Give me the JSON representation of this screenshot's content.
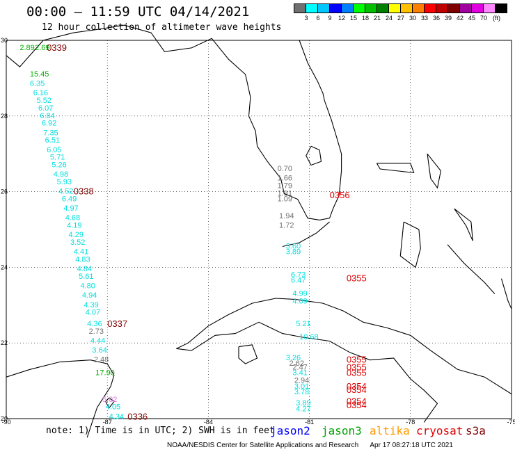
{
  "header": {
    "title": "00:00 – 11:59 UTC 04/14/2021",
    "subtitle": "12 hour collection of altimeter wave heights"
  },
  "colorbar": {
    "colors": [
      "#707070",
      "#00ffff",
      "#00c8ff",
      "#0000ff",
      "#0080ff",
      "#00ff00",
      "#00c000",
      "#008000",
      "#ffff00",
      "#ffc000",
      "#ff8000",
      "#ff0000",
      "#c00000",
      "#800000",
      "#a000a0",
      "#e000e0",
      "#ff88ff",
      "#000000"
    ],
    "labels": [
      "3",
      "6",
      "9",
      "12",
      "15",
      "18",
      "21",
      "24",
      "27",
      "30",
      "33",
      "36",
      "39",
      "42",
      "45",
      "70"
    ],
    "unit": "(ft)"
  },
  "map": {
    "lon_range": [
      -90,
      -75
    ],
    "lat_range": [
      20,
      30
    ],
    "lon_ticks": [
      "-90",
      "-87",
      "-84",
      "-81",
      "-78",
      "-75"
    ],
    "lat_ticks": [
      "30",
      "28",
      "26",
      "24",
      "22",
      "20"
    ],
    "grid": "dotted",
    "colors": {
      "cyan": "#00dede",
      "green": "#00b000",
      "gray": "#707070",
      "pink": "#e070e0",
      "red": "#dd0000",
      "darkred": "#800000"
    },
    "pass_labels": [
      {
        "text": "0339",
        "lon": -88.8,
        "lat": 29.8,
        "color": "darkred"
      },
      {
        "text": "0338",
        "lon": -88.0,
        "lat": 26.0,
        "color": "darkred"
      },
      {
        "text": "0337",
        "lon": -87.0,
        "lat": 22.5,
        "color": "darkred"
      },
      {
        "text": "0336",
        "lon": -86.4,
        "lat": 20.05,
        "color": "darkred"
      },
      {
        "text": "0356",
        "lon": -80.4,
        "lat": 25.9,
        "color": "red"
      },
      {
        "text": "0355",
        "lon": -79.9,
        "lat": 23.7,
        "color": "red"
      },
      {
        "text": "0355",
        "lon": -79.9,
        "lat": 21.55,
        "color": "red"
      },
      {
        "text": "0355",
        "lon": -79.9,
        "lat": 21.35,
        "color": "red"
      },
      {
        "text": "0355",
        "lon": -79.9,
        "lat": 21.2,
        "color": "red"
      },
      {
        "text": "0354",
        "lon": -79.9,
        "lat": 20.85,
        "color": "red"
      },
      {
        "text": "0354",
        "lon": -79.9,
        "lat": 20.75,
        "color": "red"
      },
      {
        "text": "0354",
        "lon": -79.9,
        "lat": 20.45,
        "color": "red"
      },
      {
        "text": "0354",
        "lon": -79.9,
        "lat": 20.35,
        "color": "red"
      }
    ],
    "swh_points": [
      {
        "text": "2.89",
        "lon": -89.6,
        "lat": 29.8,
        "color": "green"
      },
      {
        "text": "2.69",
        "lon": -89.15,
        "lat": 29.8,
        "color": "green"
      },
      {
        "text": "15.45",
        "lon": -89.3,
        "lat": 29.1,
        "color": "green"
      },
      {
        "text": "6.35",
        "lon": -89.3,
        "lat": 28.85,
        "color": "cyan"
      },
      {
        "text": "6.16",
        "lon": -89.2,
        "lat": 28.6,
        "color": "cyan"
      },
      {
        "text": "5.52",
        "lon": -89.1,
        "lat": 28.4,
        "color": "cyan"
      },
      {
        "text": "6.07",
        "lon": -89.05,
        "lat": 28.2,
        "color": "cyan"
      },
      {
        "text": "6.84",
        "lon": -89.0,
        "lat": 28.0,
        "color": "cyan"
      },
      {
        "text": "6.92",
        "lon": -88.95,
        "lat": 27.8,
        "color": "cyan"
      },
      {
        "text": "7.35",
        "lon": -88.9,
        "lat": 27.55,
        "color": "cyan"
      },
      {
        "text": "6.51",
        "lon": -88.85,
        "lat": 27.35,
        "color": "cyan"
      },
      {
        "text": "6.05",
        "lon": -88.8,
        "lat": 27.1,
        "color": "cyan"
      },
      {
        "text": "5.71",
        "lon": -88.7,
        "lat": 26.9,
        "color": "cyan"
      },
      {
        "text": "5.26",
        "lon": -88.65,
        "lat": 26.7,
        "color": "cyan"
      },
      {
        "text": "4.98",
        "lon": -88.6,
        "lat": 26.45,
        "color": "cyan"
      },
      {
        "text": "5.93",
        "lon": -88.5,
        "lat": 26.25,
        "color": "cyan"
      },
      {
        "text": "4.52",
        "lon": -88.45,
        "lat": 26.0,
        "color": "cyan"
      },
      {
        "text": "6.49",
        "lon": -88.35,
        "lat": 25.8,
        "color": "cyan"
      },
      {
        "text": "4.97",
        "lon": -88.3,
        "lat": 25.55,
        "color": "cyan"
      },
      {
        "text": "4.68",
        "lon": -88.25,
        "lat": 25.3,
        "color": "cyan"
      },
      {
        "text": "4.19",
        "lon": -88.2,
        "lat": 25.1,
        "color": "cyan"
      },
      {
        "text": "4.29",
        "lon": -88.15,
        "lat": 24.85,
        "color": "cyan"
      },
      {
        "text": "3.52",
        "lon": -88.1,
        "lat": 24.65,
        "color": "cyan"
      },
      {
        "text": "4.41",
        "lon": -88.0,
        "lat": 24.4,
        "color": "cyan"
      },
      {
        "text": "4.83",
        "lon": -87.95,
        "lat": 24.2,
        "color": "cyan"
      },
      {
        "text": "4.84",
        "lon": -87.9,
        "lat": 23.95,
        "color": "cyan"
      },
      {
        "text": "5.61",
        "lon": -87.85,
        "lat": 23.75,
        "color": "cyan"
      },
      {
        "text": "4.80",
        "lon": -87.8,
        "lat": 23.5,
        "color": "cyan"
      },
      {
        "text": "4.94",
        "lon": -87.75,
        "lat": 23.25,
        "color": "cyan"
      },
      {
        "text": "4.39",
        "lon": -87.7,
        "lat": 23.0,
        "color": "cyan"
      },
      {
        "text": "4.07",
        "lon": -87.65,
        "lat": 22.8,
        "color": "cyan"
      },
      {
        "text": "4.36",
        "lon": -87.6,
        "lat": 22.5,
        "color": "cyan"
      },
      {
        "text": "2.73",
        "lon": -87.55,
        "lat": 22.3,
        "color": "gray"
      },
      {
        "text": "4.44",
        "lon": -87.5,
        "lat": 22.05,
        "color": "cyan"
      },
      {
        "text": "3.64",
        "lon": -87.45,
        "lat": 21.8,
        "color": "cyan"
      },
      {
        "text": "2.48",
        "lon": -87.4,
        "lat": 21.55,
        "color": "gray"
      },
      {
        "text": "17.90",
        "lon": -87.35,
        "lat": 21.2,
        "color": "green"
      },
      {
        "text": "5.02",
        "lon": -87.15,
        "lat": 20.5,
        "color": "pink"
      },
      {
        "text": "4.05",
        "lon": -87.05,
        "lat": 20.3,
        "color": "cyan"
      },
      {
        "text": "4.34",
        "lon": -86.95,
        "lat": 20.05,
        "color": "cyan"
      },
      {
        "text": "0.70",
        "lon": -81.95,
        "lat": 26.6,
        "color": "gray"
      },
      {
        "text": "1.66",
        "lon": -81.95,
        "lat": 26.35,
        "color": "gray"
      },
      {
        "text": "1.79",
        "lon": -81.95,
        "lat": 26.15,
        "color": "gray"
      },
      {
        "text": "1.31",
        "lon": -81.95,
        "lat": 25.95,
        "color": "gray"
      },
      {
        "text": "1.09",
        "lon": -81.95,
        "lat": 25.8,
        "color": "gray"
      },
      {
        "text": "1.94",
        "lon": -81.9,
        "lat": 25.35,
        "color": "gray"
      },
      {
        "text": "1.72",
        "lon": -81.9,
        "lat": 25.1,
        "color": "gray"
      },
      {
        "text": "3.60",
        "lon": -81.7,
        "lat": 24.55,
        "color": "cyan"
      },
      {
        "text": "3.89",
        "lon": -81.7,
        "lat": 24.4,
        "color": "cyan"
      },
      {
        "text": "6.73",
        "lon": -81.55,
        "lat": 23.8,
        "color": "cyan"
      },
      {
        "text": "6.47",
        "lon": -81.55,
        "lat": 23.65,
        "color": "cyan"
      },
      {
        "text": "4.99",
        "lon": -81.5,
        "lat": 23.3,
        "color": "cyan"
      },
      {
        "text": "4.09",
        "lon": -81.5,
        "lat": 23.1,
        "color": "cyan"
      },
      {
        "text": "5.21",
        "lon": -81.4,
        "lat": 22.5,
        "color": "cyan"
      },
      {
        "text": "10.68",
        "lon": -81.3,
        "lat": 22.15,
        "color": "cyan"
      },
      {
        "text": "3.26",
        "lon": -81.7,
        "lat": 21.6,
        "color": "cyan"
      },
      {
        "text": "2.62",
        "lon": -81.6,
        "lat": 21.45,
        "color": "gray"
      },
      {
        "text": "2.47",
        "lon": -81.5,
        "lat": 21.35,
        "color": "gray"
      },
      {
        "text": "3.41",
        "lon": -81.5,
        "lat": 21.2,
        "color": "cyan"
      },
      {
        "text": "2.94",
        "lon": -81.45,
        "lat": 21.0,
        "color": "gray"
      },
      {
        "text": "3.01",
        "lon": -81.45,
        "lat": 20.85,
        "color": "cyan"
      },
      {
        "text": "3.78",
        "lon": -81.45,
        "lat": 20.7,
        "color": "cyan"
      },
      {
        "text": "3.89",
        "lon": -81.4,
        "lat": 20.4,
        "color": "cyan"
      },
      {
        "text": "4.27",
        "lon": -81.4,
        "lat": 20.25,
        "color": "cyan"
      }
    ]
  },
  "footer": {
    "note": "note: 1) Time is in UTC; 2) SWH is in feet",
    "legend": [
      {
        "label": "jason2",
        "color": "#0000ff"
      },
      {
        "label": "jason3",
        "color": "#00a000"
      },
      {
        "label": "altika",
        "color": "#ff9900"
      },
      {
        "label": "cryosat",
        "color": "#dd0000"
      },
      {
        "label": "s3a",
        "color": "#800000"
      }
    ],
    "credit": "NOAA/NESDIS Center for Satellite Applications and Research",
    "timestamp": "Apr 17 08:27:18 UTC 2021"
  }
}
